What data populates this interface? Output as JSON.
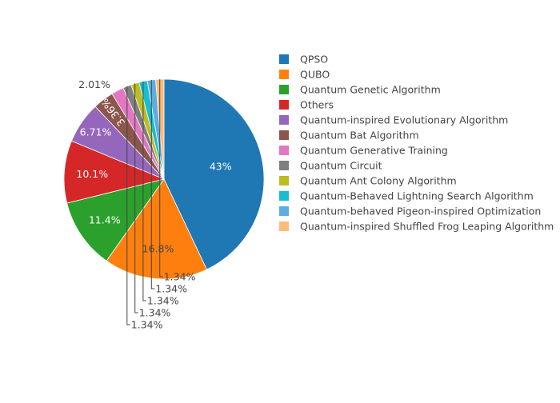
{
  "chart_data": {
    "type": "pie",
    "title": "",
    "legend_placement": "right",
    "direction": "clockwise",
    "start_angle": "top",
    "labels": [
      "QPSO",
      "QUBO",
      "Quantum Genetic Algorithm",
      "Others",
      "Quantum-inspired Evolutionary Algorithm",
      "Quantum Bat Algorithm",
      "Quantum Generative Training",
      "Quantum Circuit",
      "Quantum Ant Colony Algorithm",
      "Quantum-Behaved Lightning Search Algorithm",
      "Quantum-behaved Pigeon-inspired Optimization",
      "Quantum-inspired Shuffled Frog Leaping Algorithm"
    ],
    "values": [
      43,
      16.8,
      11.4,
      10.1,
      6.71,
      3.36,
      2.01,
      1.34,
      1.34,
      1.34,
      1.34,
      1.34
    ],
    "value_labels": [
      "43%",
      "16.8%",
      "11.4%",
      "10.1%",
      "6.71%",
      "3.36%",
      "2.01%",
      "1.34%",
      "1.34%",
      "1.34%",
      "1.34%",
      "1.34%"
    ],
    "colors": [
      "#1f77b4",
      "#ff7f0e",
      "#2ca02c",
      "#d62728",
      "#9467bd",
      "#8c564b",
      "#e377c2",
      "#7f7f7f",
      "#bcbd22",
      "#17becf",
      "#5dade2",
      "#ffbb78"
    ]
  }
}
